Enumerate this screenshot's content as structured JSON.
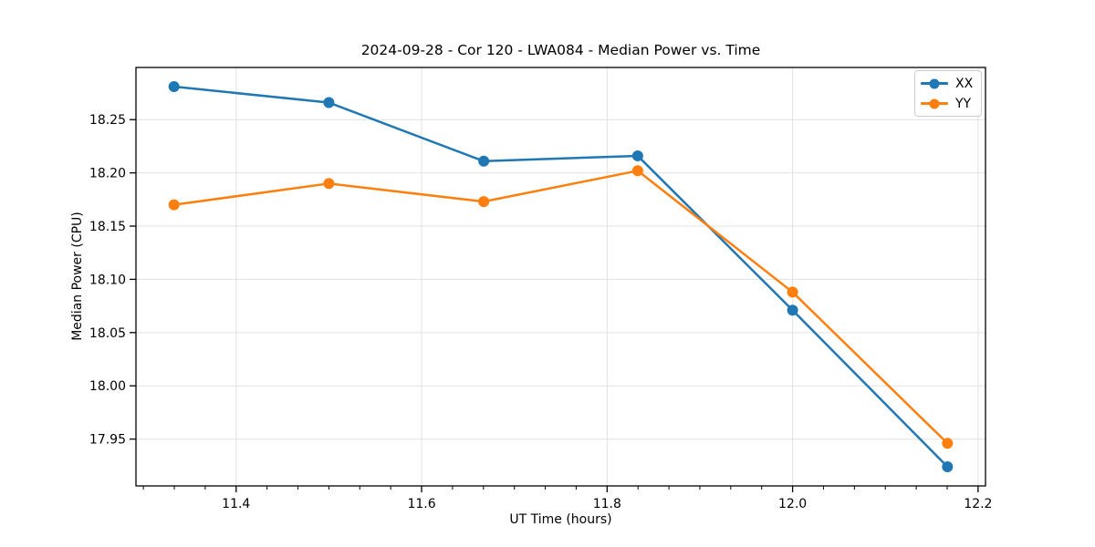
{
  "chart_data": {
    "type": "line",
    "title": "2024-09-28 - Cor 120 - LWA084 - Median Power vs. Time",
    "xlabel": "UT Time (hours)",
    "ylabel": "Median Power (CPU)",
    "x": [
      11.333,
      11.5,
      11.667,
      11.833,
      12.0,
      12.167
    ],
    "series": [
      {
        "name": "XX",
        "color": "#1f77b4",
        "values": [
          18.281,
          18.266,
          18.211,
          18.216,
          18.071,
          17.924
        ]
      },
      {
        "name": "YY",
        "color": "#ff7f0e",
        "values": [
          18.17,
          18.19,
          18.173,
          18.202,
          18.088,
          17.946
        ]
      }
    ],
    "xlim": [
      11.292,
      12.208
    ],
    "ylim": [
      17.906,
      18.299
    ],
    "x_ticks": {
      "values": [
        11.4,
        11.6,
        11.8,
        12.0,
        12.2
      ],
      "labels": [
        "11.4",
        "11.6",
        "11.8",
        "12.0",
        "12.2"
      ],
      "minor_step": 0.0333333
    },
    "y_ticks": {
      "values": [
        17.95,
        18.0,
        18.05,
        18.1,
        18.15,
        18.2,
        18.25
      ],
      "labels": [
        "17.95",
        "18.00",
        "18.05",
        "18.10",
        "18.15",
        "18.20",
        "18.25"
      ]
    },
    "grid": true,
    "grid_color": "#e2e2e2",
    "spine_color": "#000000",
    "tick_label_color": "#000000",
    "legend": {
      "position": "upper right",
      "entries": [
        "XX",
        "YY"
      ]
    },
    "marker": "o",
    "line_style": "solid"
  }
}
